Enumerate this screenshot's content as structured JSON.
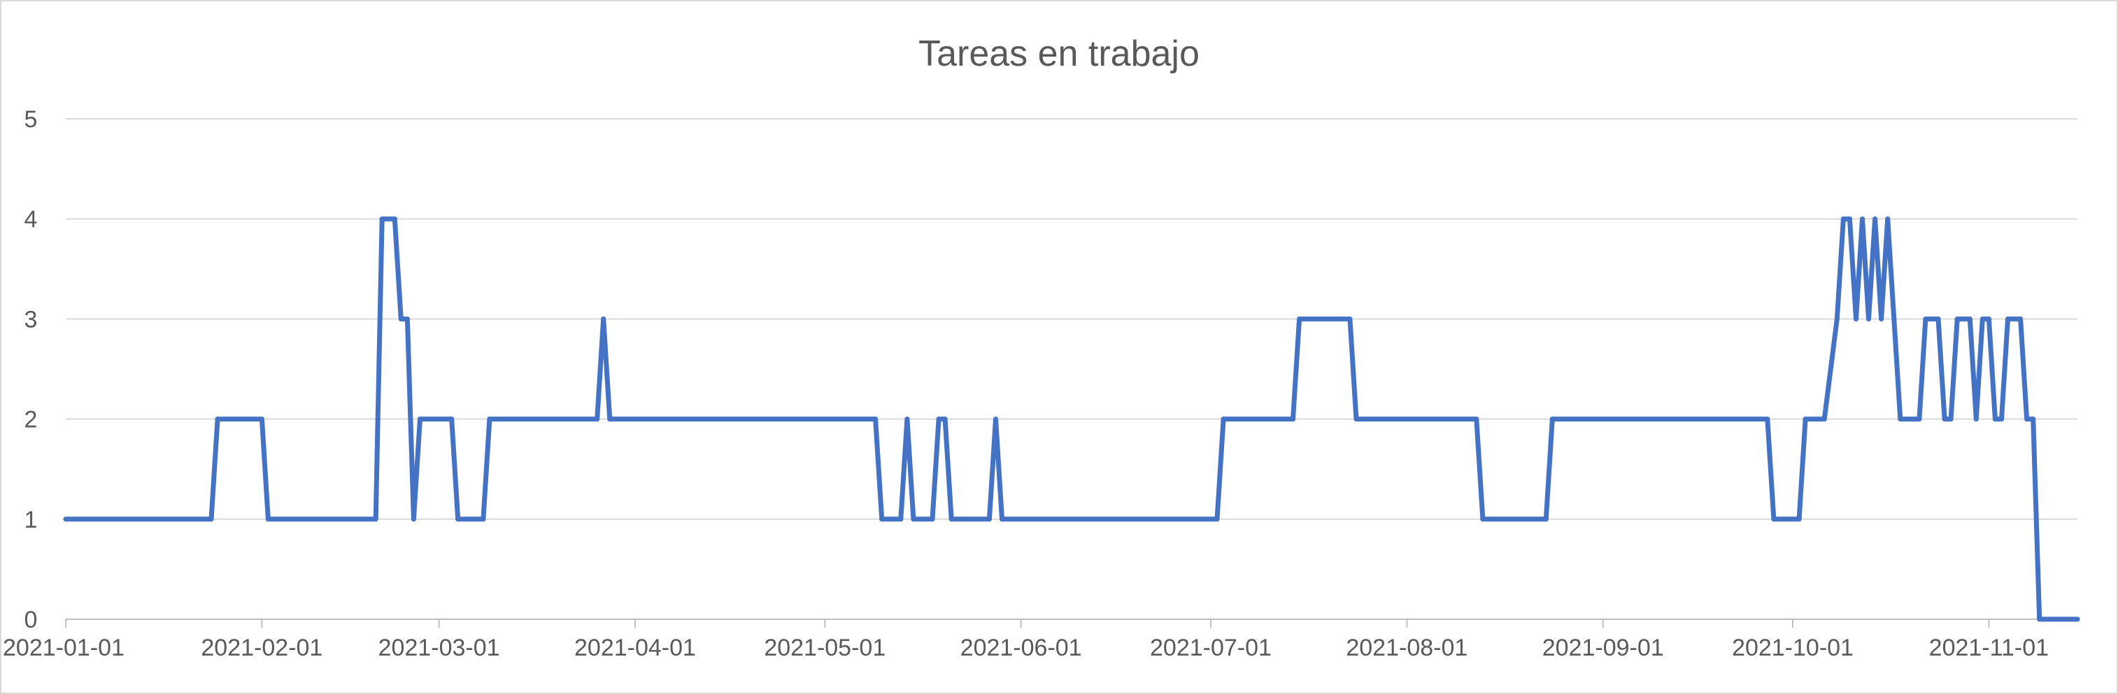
{
  "chart_data": {
    "type": "line",
    "title": "Tareas en trabajo",
    "xlabel": "",
    "ylabel": "",
    "ylim": [
      0,
      5
    ],
    "y_ticks": [
      0,
      1,
      2,
      3,
      4,
      5
    ],
    "xlim": [
      "2021-01-01",
      "2021-11-15"
    ],
    "x_ticks": [
      "2021-01-01",
      "2021-02-01",
      "2021-03-01",
      "2021-04-01",
      "2021-05-01",
      "2021-06-01",
      "2021-07-01",
      "2021-08-01",
      "2021-09-01",
      "2021-10-01",
      "2021-11-01"
    ],
    "grid": true,
    "legend": "none",
    "color": "#4472c4",
    "series": [
      {
        "points": [
          [
            "2021-01-01",
            1
          ],
          [
            "2021-01-24",
            1
          ],
          [
            "2021-01-25",
            2
          ],
          [
            "2021-02-01",
            2
          ],
          [
            "2021-02-02",
            1
          ],
          [
            "2021-02-19",
            1
          ],
          [
            "2021-02-20",
            4
          ],
          [
            "2021-02-22",
            4
          ],
          [
            "2021-02-23",
            3
          ],
          [
            "2021-02-24",
            3
          ],
          [
            "2021-02-25",
            1
          ],
          [
            "2021-02-26",
            2
          ],
          [
            "2021-03-03",
            2
          ],
          [
            "2021-03-04",
            1
          ],
          [
            "2021-03-08",
            1
          ],
          [
            "2021-03-09",
            2
          ],
          [
            "2021-03-26",
            2
          ],
          [
            "2021-03-27",
            3
          ],
          [
            "2021-03-28",
            2
          ],
          [
            "2021-05-09",
            2
          ],
          [
            "2021-05-10",
            1
          ],
          [
            "2021-05-13",
            1
          ],
          [
            "2021-05-14",
            2
          ],
          [
            "2021-05-15",
            1
          ],
          [
            "2021-05-18",
            1
          ],
          [
            "2021-05-19",
            2
          ],
          [
            "2021-05-20",
            2
          ],
          [
            "2021-05-21",
            1
          ],
          [
            "2021-05-27",
            1
          ],
          [
            "2021-05-28",
            2
          ],
          [
            "2021-05-29",
            1
          ],
          [
            "2021-07-02",
            1
          ],
          [
            "2021-07-03",
            2
          ],
          [
            "2021-07-14",
            2
          ],
          [
            "2021-07-15",
            3
          ],
          [
            "2021-07-23",
            3
          ],
          [
            "2021-07-24",
            2
          ],
          [
            "2021-08-12",
            2
          ],
          [
            "2021-08-13",
            1
          ],
          [
            "2021-08-23",
            1
          ],
          [
            "2021-08-24",
            2
          ],
          [
            "2021-09-27",
            2
          ],
          [
            "2021-09-28",
            1
          ],
          [
            "2021-10-02",
            1
          ],
          [
            "2021-10-03",
            2
          ],
          [
            "2021-10-06",
            2
          ],
          [
            "2021-10-08",
            3
          ],
          [
            "2021-10-09",
            4
          ],
          [
            "2021-10-10",
            4
          ],
          [
            "2021-10-11",
            3
          ],
          [
            "2021-10-12",
            4
          ],
          [
            "2021-10-13",
            3
          ],
          [
            "2021-10-14",
            4
          ],
          [
            "2021-10-15",
            3
          ],
          [
            "2021-10-16",
            4
          ],
          [
            "2021-10-18",
            2
          ],
          [
            "2021-10-21",
            2
          ],
          [
            "2021-10-22",
            3
          ],
          [
            "2021-10-24",
            3
          ],
          [
            "2021-10-25",
            2
          ],
          [
            "2021-10-26",
            2
          ],
          [
            "2021-10-27",
            3
          ],
          [
            "2021-10-29",
            3
          ],
          [
            "2021-10-30",
            2
          ],
          [
            "2021-10-31",
            3
          ],
          [
            "2021-11-01",
            3
          ],
          [
            "2021-11-02",
            2
          ],
          [
            "2021-11-03",
            2
          ],
          [
            "2021-11-04",
            3
          ],
          [
            "2021-11-06",
            3
          ],
          [
            "2021-11-07",
            2
          ],
          [
            "2021-11-08",
            2
          ],
          [
            "2021-11-09",
            0
          ],
          [
            "2021-11-15",
            0
          ]
        ]
      }
    ]
  }
}
